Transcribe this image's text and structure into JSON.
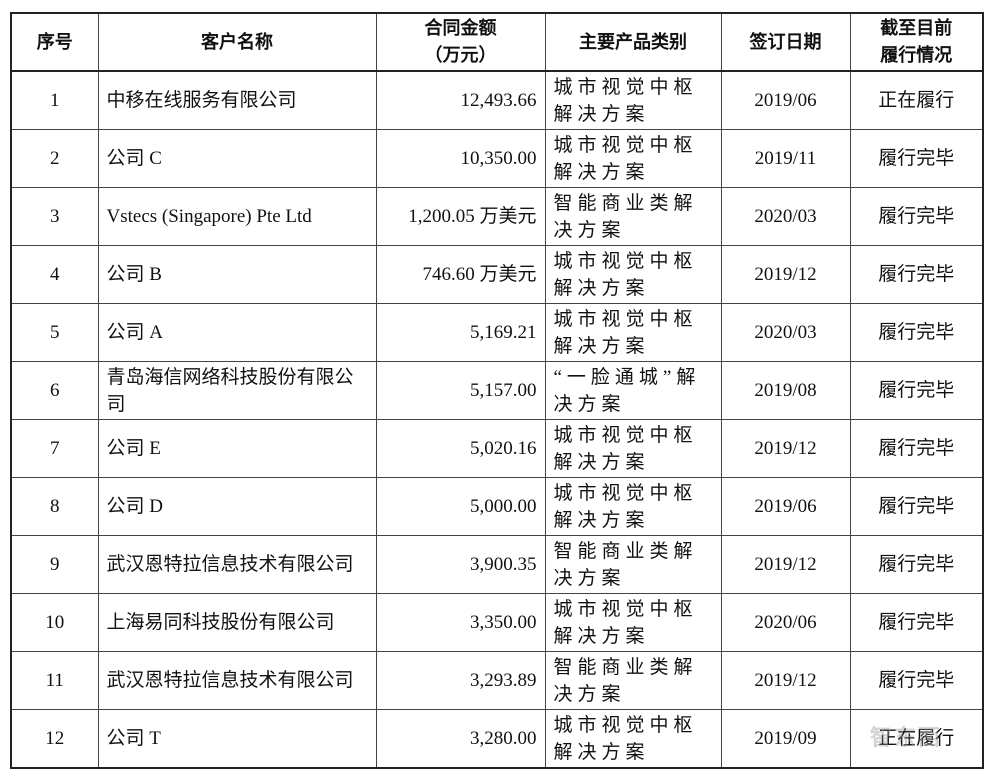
{
  "headers": [
    "序号",
    "客户名称",
    "合同金额（万元）",
    "主要产品类别",
    "签订日期",
    "截至目前履行情况"
  ],
  "header_lines": {
    "amount": [
      "合同金额",
      "（万元）"
    ],
    "status": [
      "截至目前",
      "履行情况"
    ]
  },
  "rows": [
    {
      "no": "1",
      "customer": "中移在线服务有限公司",
      "amount": "12,493.66",
      "product": "城市视觉中枢解决方案",
      "date": "2019/06",
      "status": "正在履行"
    },
    {
      "no": "2",
      "customer": "公司 C",
      "amount": "10,350.00",
      "product": "城市视觉中枢解决方案",
      "date": "2019/11",
      "status": "履行完毕"
    },
    {
      "no": "3",
      "customer": "Vstecs (Singapore) Pte Ltd",
      "amount": "1,200.05 万美元",
      "product": "智能商业类解决方案",
      "date": "2020/03",
      "status": "履行完毕"
    },
    {
      "no": "4",
      "customer": "公司 B",
      "amount": "746.60 万美元",
      "product": "城市视觉中枢解决方案",
      "date": "2019/12",
      "status": "履行完毕"
    },
    {
      "no": "5",
      "customer": "公司 A",
      "amount": "5,169.21",
      "product": "城市视觉中枢解决方案",
      "date": "2020/03",
      "status": "履行完毕"
    },
    {
      "no": "6",
      "customer": "青岛海信网络科技股份有限公司",
      "amount": "5,157.00",
      "product": "“一脸通城”解决方案",
      "date": "2019/08",
      "status": "履行完毕"
    },
    {
      "no": "7",
      "customer": "公司 E",
      "amount": "5,020.16",
      "product": "城市视觉中枢解决方案",
      "date": "2019/12",
      "status": "履行完毕"
    },
    {
      "no": "8",
      "customer": "公司 D",
      "amount": "5,000.00",
      "product": "城市视觉中枢解决方案",
      "date": "2019/06",
      "status": "履行完毕"
    },
    {
      "no": "9",
      "customer": "武汉恩特拉信息技术有限公司",
      "amount": "3,900.35",
      "product": "智能商业类解决方案",
      "date": "2019/12",
      "status": "履行完毕"
    },
    {
      "no": "10",
      "customer": "上海易同科技股份有限公司",
      "amount": "3,350.00",
      "product": "城市视觉中枢解决方案",
      "date": "2020/06",
      "status": "履行完毕"
    },
    {
      "no": "11",
      "customer": "武汉恩特拉信息技术有限公司",
      "amount": "3,293.89",
      "product": "智能商业类解决方案",
      "date": "2019/12",
      "status": "履行完毕"
    },
    {
      "no": "12",
      "customer": "公司 T",
      "amount": "3,280.00",
      "product": "城市视觉中枢解决方案",
      "date": "2019/09",
      "status": "正在履行"
    }
  ],
  "watermark": "智东西 zhidx.com"
}
